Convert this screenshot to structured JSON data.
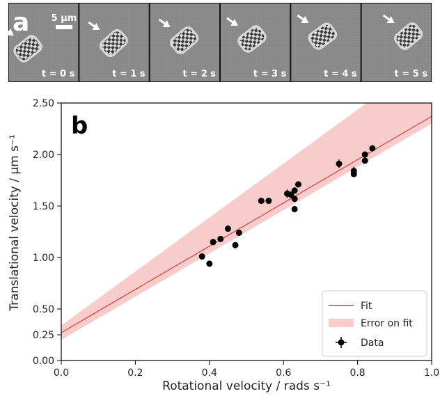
{
  "panel_a": {
    "label": "a",
    "scale_bar": "5 µm",
    "frames": [
      {
        "time": "t = 0 s"
      },
      {
        "time": "t = 1 s"
      },
      {
        "time": "t = 2 s"
      },
      {
        "time": "t = 3 s"
      },
      {
        "time": "t = 4 s"
      },
      {
        "time": "t = 5 s"
      }
    ]
  },
  "chart_data": {
    "type": "scatter",
    "panel_label": "b",
    "xlabel": "Rotational velocity / rads s⁻¹",
    "ylabel": "Translational velocity / µm s⁻¹",
    "xlim": [
      0.0,
      1.0
    ],
    "ylim": [
      0.0,
      2.5
    ],
    "xticks": [
      "0.0",
      "0.2",
      "0.4",
      "0.6",
      "0.8",
      "1.0"
    ],
    "yticks": [
      "0.00",
      "0.25",
      "0.50",
      "1.00",
      "1.50",
      "2.00",
      "2.50"
    ],
    "ytick_values": [
      0.0,
      0.25,
      0.5,
      1.0,
      1.5,
      2.0,
      2.5
    ],
    "xtick_values": [
      0.0,
      0.2,
      0.4,
      0.6,
      0.8,
      1.0
    ],
    "legend_position": "bottom-right",
    "series": [
      {
        "name": "Data",
        "kind": "points",
        "color": "#000000",
        "points": [
          {
            "x": 0.38,
            "y": 1.01,
            "err": 0.03
          },
          {
            "x": 0.4,
            "y": 0.94,
            "err": 0.03
          },
          {
            "x": 0.41,
            "y": 1.15,
            "err": 0.03
          },
          {
            "x": 0.43,
            "y": 1.18,
            "err": 0.03
          },
          {
            "x": 0.45,
            "y": 1.28,
            "err": 0.03
          },
          {
            "x": 0.47,
            "y": 1.12,
            "err": 0.03
          },
          {
            "x": 0.48,
            "y": 1.24,
            "err": 0.03
          },
          {
            "x": 0.54,
            "y": 1.55,
            "err": 0.03
          },
          {
            "x": 0.56,
            "y": 1.55,
            "err": 0.03
          },
          {
            "x": 0.61,
            "y": 1.62,
            "err": 0.04
          },
          {
            "x": 0.62,
            "y": 1.61,
            "err": 0.03
          },
          {
            "x": 0.63,
            "y": 1.65,
            "err": 0.03
          },
          {
            "x": 0.63,
            "y": 1.57,
            "err": 0.03
          },
          {
            "x": 0.63,
            "y": 1.47,
            "err": 0.03
          },
          {
            "x": 0.64,
            "y": 1.71,
            "err": 0.03
          },
          {
            "x": 0.75,
            "y": 1.91,
            "err": 0.04
          },
          {
            "x": 0.79,
            "y": 1.84,
            "err": 0.04
          },
          {
            "x": 0.79,
            "y": 1.81,
            "err": 0.03
          },
          {
            "x": 0.82,
            "y": 2.0,
            "err": 0.03
          },
          {
            "x": 0.82,
            "y": 1.94,
            "err": 0.03
          },
          {
            "x": 0.84,
            "y": 2.06,
            "err": 0.03
          }
        ]
      },
      {
        "name": "Fit",
        "kind": "line",
        "color": "#e03c3c",
        "intercept": 0.27,
        "slope": 2.1
      },
      {
        "name": "Error on fit",
        "kind": "band",
        "color": "#f4a3a3",
        "lower": [
          0.2,
          2.1
        ],
        "upper": [
          0.34,
          2.62
        ]
      }
    ]
  }
}
